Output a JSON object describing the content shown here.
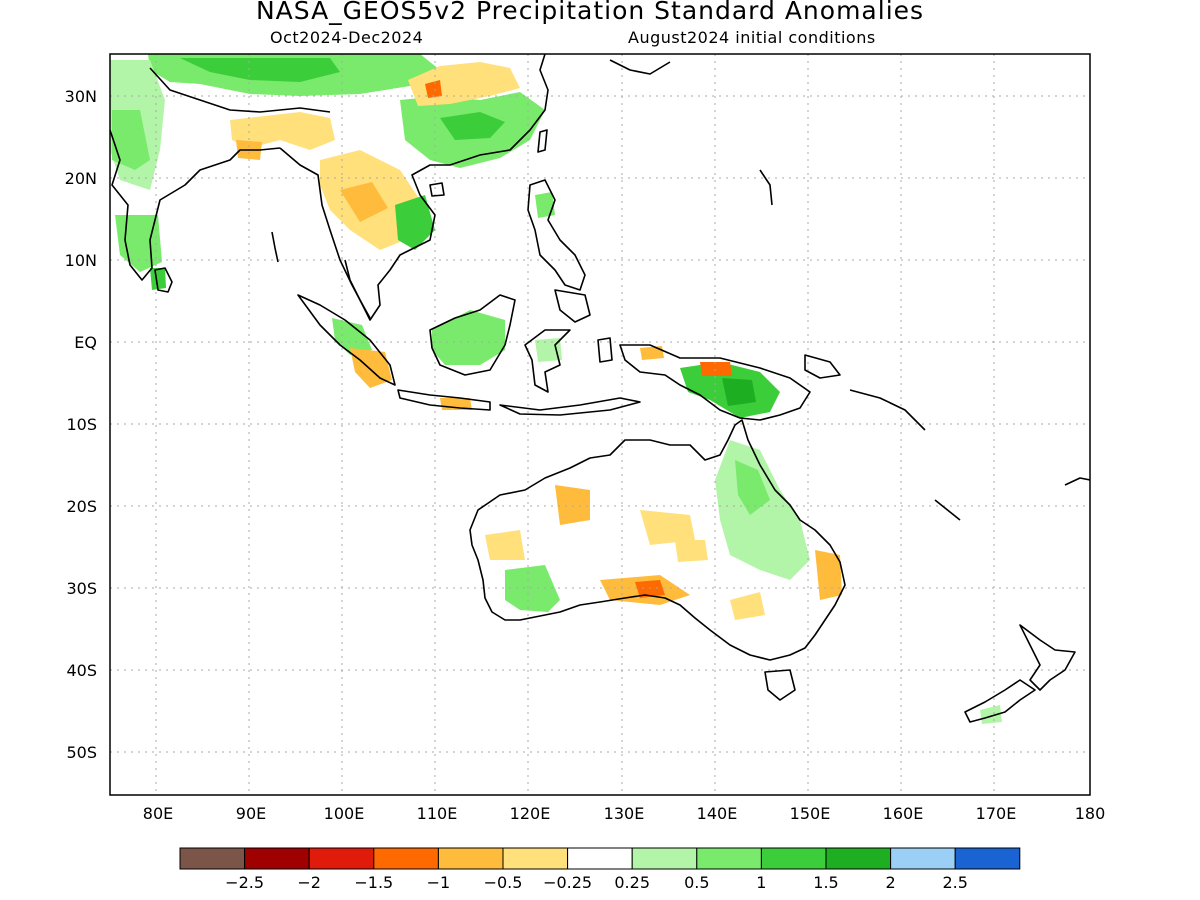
{
  "header": {
    "title": "NASA_GEOS5v2 Precipitation Standard Anomalies",
    "period": "Oct2024-Dec2024",
    "init": "August2024 initial conditions"
  },
  "axes": {
    "lat_labels": [
      "30N",
      "20N",
      "10N",
      "EQ",
      "10S",
      "20S",
      "30S",
      "40S",
      "50S"
    ],
    "lon_labels": [
      "80E",
      "90E",
      "100E",
      "110E",
      "120E",
      "130E",
      "140E",
      "150E",
      "160E",
      "170E",
      "180"
    ]
  },
  "colorbar": {
    "colors": [
      "#7a5548",
      "#9f0000",
      "#e01b0c",
      "#ff6a00",
      "#ffbb3c",
      "#ffe07a",
      "#ffffff",
      "#b3f5a8",
      "#79ea6b",
      "#3ccd3a",
      "#1eae22",
      "#9bcff6",
      "#1a63d3"
    ],
    "labels": [
      "−2.5",
      "−2",
      "−1.5",
      "−1",
      "−0.5",
      "−0.25",
      "0.25",
      "0.5",
      "1",
      "1.5",
      "2",
      "2.5"
    ]
  },
  "legend_meaning": {
    "dry": "brown/red/orange/yellow = below normal",
    "wet": "green/blue = above normal"
  }
}
